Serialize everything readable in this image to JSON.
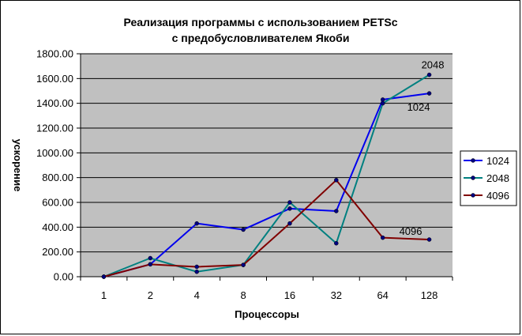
{
  "chart_data": {
    "type": "line",
    "title": "Реализация программы с использованием PETSc",
    "subtitle": "с предобусловливателем Якоби",
    "xlabel": "Процессоры",
    "ylabel": "ускорение",
    "categories": [
      "1",
      "2",
      "4",
      "8",
      "16",
      "32",
      "64",
      "128"
    ],
    "ylim": [
      0,
      1800
    ],
    "yticks": [
      "0.00",
      "200.00",
      "400.00",
      "600.00",
      "800.00",
      "1000.00",
      "1200.00",
      "1400.00",
      "1600.00",
      "1800.00"
    ],
    "grid": true,
    "legend_position": "right",
    "series": [
      {
        "name": "1024",
        "color": "#0000ee",
        "values": [
          0,
          100,
          430,
          380,
          550,
          530,
          1430,
          1480
        ]
      },
      {
        "name": "2048",
        "color": "#008080",
        "values": [
          0,
          150,
          40,
          95,
          600,
          270,
          1400,
          1630
        ]
      },
      {
        "name": "4096",
        "color": "#800000",
        "values": [
          0,
          100,
          80,
          95,
          430,
          780,
          315,
          300
        ]
      }
    ],
    "annotations": [
      {
        "text": "2048",
        "series": "2048",
        "category": "128"
      },
      {
        "text": "1024",
        "series": "1024",
        "category": "128"
      },
      {
        "text": "4096",
        "series": "4096",
        "category": "128"
      }
    ],
    "plot_background": "#c0c0c0",
    "gridline_color": "#000000"
  }
}
